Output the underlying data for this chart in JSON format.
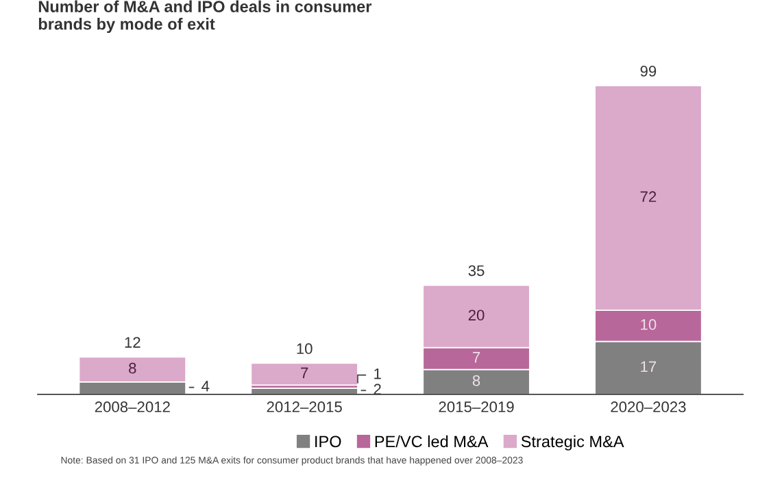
{
  "chart_data": {
    "type": "bar",
    "stacked": true,
    "title": "Number of M&A and IPO deals in consumer\nbrands by mode of exit",
    "categories": [
      "2008–2012",
      "2012–2015",
      "2015–2019",
      "2020–2023"
    ],
    "series": [
      {
        "name": "IPO",
        "color": "#808080",
        "values": [
          4,
          2,
          8,
          17
        ],
        "value_labels": [
          "4",
          "2",
          "8",
          "17"
        ]
      },
      {
        "name": "PE/VC led M&A",
        "color": "#b8679a",
        "values": [
          0,
          1,
          7,
          10
        ],
        "value_labels": [
          null,
          "1",
          "7",
          "10"
        ]
      },
      {
        "name": "Strategic M&A",
        "color": "#dba9c9",
        "values": [
          8,
          7,
          20,
          72
        ],
        "value_labels": [
          "8",
          "7",
          "20",
          "72"
        ]
      }
    ],
    "totals": [
      "12",
      "10",
      "35",
      "99"
    ],
    "legend": "bottom",
    "grid": false,
    "annotations": [
      "Note: Based on 31 IPO and 125 M&A exits for consumer product brands that have happened over 2008–2023"
    ]
  }
}
